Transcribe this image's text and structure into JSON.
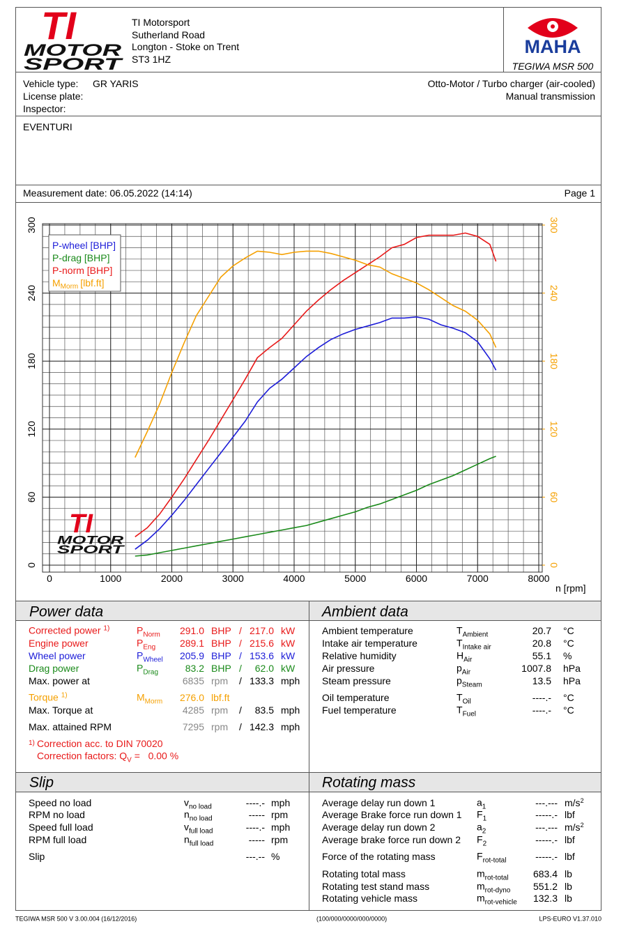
{
  "logo": {
    "mark": "TI",
    "line1": "MOTOR",
    "line2": "SPORT"
  },
  "header": {
    "address": [
      "TI Motorsport",
      "Sutherland Road",
      "Longton - Stoke on Trent",
      "ST3 1HZ"
    ],
    "maha": "MAHA",
    "model": "TEGIWA MSR 500"
  },
  "vehicle": {
    "type_label": "Vehicle type:",
    "type": "GR YARIS",
    "license_label": "License plate:",
    "inspector_label": "Inspector:",
    "engine": "Otto-Motor / Turbo charger (air-cooled)",
    "transmission": "Manual transmission"
  },
  "notes": "EVENTURI",
  "measurement": {
    "date": "Measurement date: 06.05.2022 (14:14)",
    "page": "Page 1"
  },
  "chart_data": {
    "type": "line",
    "x_label": "n [rpm]",
    "x": [
      1400,
      1600,
      1800,
      2000,
      2200,
      2400,
      2600,
      2800,
      3000,
      3200,
      3400,
      3600,
      3800,
      4000,
      4200,
      4400,
      4600,
      4800,
      5000,
      5200,
      5400,
      5600,
      5800,
      6000,
      6200,
      6400,
      6600,
      6800,
      7000,
      7200,
      7300
    ],
    "series": [
      {
        "name": "P-wheel [BHP]",
        "color": "#1c1cd8",
        "values": [
          14,
          22,
          32,
          44,
          57,
          71,
          85,
          99,
          113,
          127,
          144,
          156,
          164,
          174,
          184,
          192,
          199,
          204,
          208,
          211,
          214,
          218,
          218,
          219,
          217,
          212,
          209,
          205,
          197,
          182,
          172
        ]
      },
      {
        "name": "P-drag [BHP]",
        "color": "#1a8a1a",
        "values": [
          8,
          9,
          11,
          13,
          15,
          17,
          19,
          21,
          23,
          25,
          27,
          29,
          31,
          33,
          35,
          38,
          41,
          44,
          47,
          51,
          54,
          58,
          62,
          66,
          71,
          75,
          79,
          84,
          89,
          94,
          96
        ]
      },
      {
        "name": "P-norm [BHP]",
        "color": "#e81919",
        "values": [
          25,
          33,
          45,
          60,
          76,
          93,
          110,
          128,
          146,
          164,
          183,
          192,
          200,
          212,
          224,
          234,
          243,
          251,
          258,
          265,
          272,
          280,
          283,
          289,
          291,
          291,
          291,
          293,
          290,
          283,
          268
        ]
      },
      {
        "name": "M",
        "name_sub": "Morm",
        "name_unit": "[lbf.ft]",
        "color": "#f5a000",
        "axis": "y2",
        "values": [
          95,
          118,
          142,
          170,
          196,
          220,
          237,
          254,
          264,
          271,
          277,
          276,
          274,
          276,
          277,
          277,
          275,
          272,
          269,
          265,
          263,
          257,
          253,
          249,
          243,
          236,
          229,
          224,
          216,
          204,
          192
        ]
      }
    ],
    "xlim": [
      0,
      8000
    ],
    "xticks": [
      0,
      1000,
      2000,
      3000,
      4000,
      5000,
      6000,
      7000,
      8000
    ],
    "ylim": [
      0,
      300
    ],
    "yticks": [
      0,
      60,
      120,
      180,
      240,
      300
    ],
    "y2lim": [
      0,
      300
    ],
    "y2ticks": [
      0,
      60,
      120,
      180,
      240,
      300
    ],
    "y2_color": "#f5a000",
    "grid": true,
    "minor_grid": true,
    "legend": "upper left"
  },
  "power_data": {
    "title": "Power data",
    "rows": [
      {
        "label": "Corrected power",
        "note": "1)",
        "symbol": "P",
        "sub": "Norm",
        "value": "291.0",
        "unit": "BHP",
        "sep": "/",
        "value2": "217.0",
        "unit2": "kW",
        "color": "#e81919"
      },
      {
        "label": "Engine power",
        "symbol": "P",
        "sub": "Eng",
        "value": "289.1",
        "unit": "BHP",
        "sep": "/",
        "value2": "215.6",
        "unit2": "kW",
        "color": "#e81919"
      },
      {
        "label": "Wheel power",
        "symbol": "P",
        "sub": "Wheel",
        "value": "205.9",
        "unit": "BHP",
        "sep": "/",
        "value2": "153.6",
        "unit2": "kW",
        "color": "#1c1cd8"
      },
      {
        "label": "Drag power",
        "symbol": "P",
        "sub": "Drag",
        "value": "83.2",
        "unit": "BHP",
        "sep": "/",
        "value2": "62.0",
        "unit2": "kW",
        "color": "#1a8a1a"
      },
      {
        "label": "Max. power at",
        "value": "6835",
        "unit": "rpm",
        "sep": "/",
        "value2": "133.3",
        "unit2": "mph",
        "color": "#000000",
        "value_color": "#888888"
      },
      {
        "label": "Torque",
        "note": "1)",
        "symbol": "M",
        "sub": "Morm",
        "value": "276.0",
        "unit": "lbf.ft",
        "color": "#f5a000"
      },
      {
        "label": "Max. Torque at",
        "value": "4285",
        "unit": "rpm",
        "sep": "/",
        "value2": "83.5",
        "unit2": "mph",
        "color": "#000000",
        "value_color": "#888888"
      },
      {
        "label": "Max. attained RPM",
        "value": "7295",
        "unit": "rpm",
        "sep": "/",
        "value2": "142.3",
        "unit2": "mph",
        "color": "#000000",
        "value_color": "#888888"
      }
    ],
    "footnote": {
      "mark": "1)",
      "text": "Correction acc. to DIN 70020",
      "factors": "Correction factors: Q",
      "factors_sub": "V",
      "factors_value": "=   0.00 %"
    }
  },
  "ambient_data": {
    "title": "Ambient data",
    "rows": [
      {
        "label": "Ambient temperature",
        "symbol": "T",
        "sub": "Ambient",
        "value": "20.7",
        "unit": "°C"
      },
      {
        "label": "Intake air temperature",
        "symbol": "T",
        "sub": "Intake air",
        "value": "20.8",
        "unit": "°C"
      },
      {
        "label": "Relative humidity",
        "symbol": "H",
        "sub": "Air",
        "value": "55.1",
        "unit": "%"
      },
      {
        "label": "Air pressure",
        "symbol": "p",
        "sub": "Air",
        "value": "1007.8",
        "unit": "hPa"
      },
      {
        "label": "Steam pressure",
        "symbol": "p",
        "sub": "Steam",
        "value": "13.5",
        "unit": "hPa"
      },
      {
        "label": "Oil temperature",
        "symbol": "T",
        "sub": "Oil",
        "value": "----.-",
        "unit": "°C"
      },
      {
        "label": "Fuel temperature",
        "symbol": "T",
        "sub": "Fuel",
        "value": "----.-",
        "unit": "°C"
      }
    ]
  },
  "slip": {
    "title": "Slip",
    "rows": [
      {
        "label": "Speed no load",
        "symbol": "v",
        "sub": "no load",
        "value": "----.-",
        "unit": "mph"
      },
      {
        "label": "RPM no load",
        "symbol": "n",
        "sub": "no load",
        "value": "-----",
        "unit": "rpm"
      },
      {
        "label": "Speed full load",
        "symbol": "v",
        "sub": "full load",
        "value": "----.-",
        "unit": "mph"
      },
      {
        "label": "RPM full load",
        "symbol": "n",
        "sub": "full load",
        "value": "-----",
        "unit": "rpm"
      },
      {
        "label": "Slip",
        "value": "---.--",
        "unit": "%"
      }
    ]
  },
  "rotating_mass": {
    "title": "Rotating mass",
    "rows": [
      {
        "label": "Average delay run down 1",
        "symbol": "a",
        "sub": "1",
        "value": "---.---",
        "unit": "m/s",
        "unit_sup": "2"
      },
      {
        "label": "Average Brake force run down 1",
        "symbol": "F",
        "sub": "1",
        "value": "-----.-",
        "unit": "lbf"
      },
      {
        "label": "Average delay run down 2",
        "symbol": "a",
        "sub": "2",
        "value": "---.---",
        "unit": "m/s",
        "unit_sup": "2"
      },
      {
        "label": "Average brake force run down 2",
        "symbol": "F",
        "sub": "2",
        "value": "-----.-",
        "unit": "lbf"
      },
      {
        "label": "Force of the rotating mass",
        "symbol": "F",
        "sub": "rot-total",
        "value": "-----.-",
        "unit": "lbf"
      },
      {
        "label": "Rotating total mass",
        "symbol": "m",
        "sub": "rot-total",
        "value": "683.4",
        "unit": "lb"
      },
      {
        "label": "Rotating test stand mass",
        "symbol": "m",
        "sub": "rot-dyno",
        "value": "551.2",
        "unit": "lb"
      },
      {
        "label": "Rotating vehicle mass",
        "symbol": "m",
        "sub": "rot-vehicle",
        "value": "132.3",
        "unit": "lb"
      }
    ]
  },
  "footer": {
    "left": "TEGIWA MSR 500 V 3.00.004 (16/12/2016)",
    "center": "(100/000/0000/000/0000)",
    "right": "LPS-EURO V1.37.010"
  }
}
